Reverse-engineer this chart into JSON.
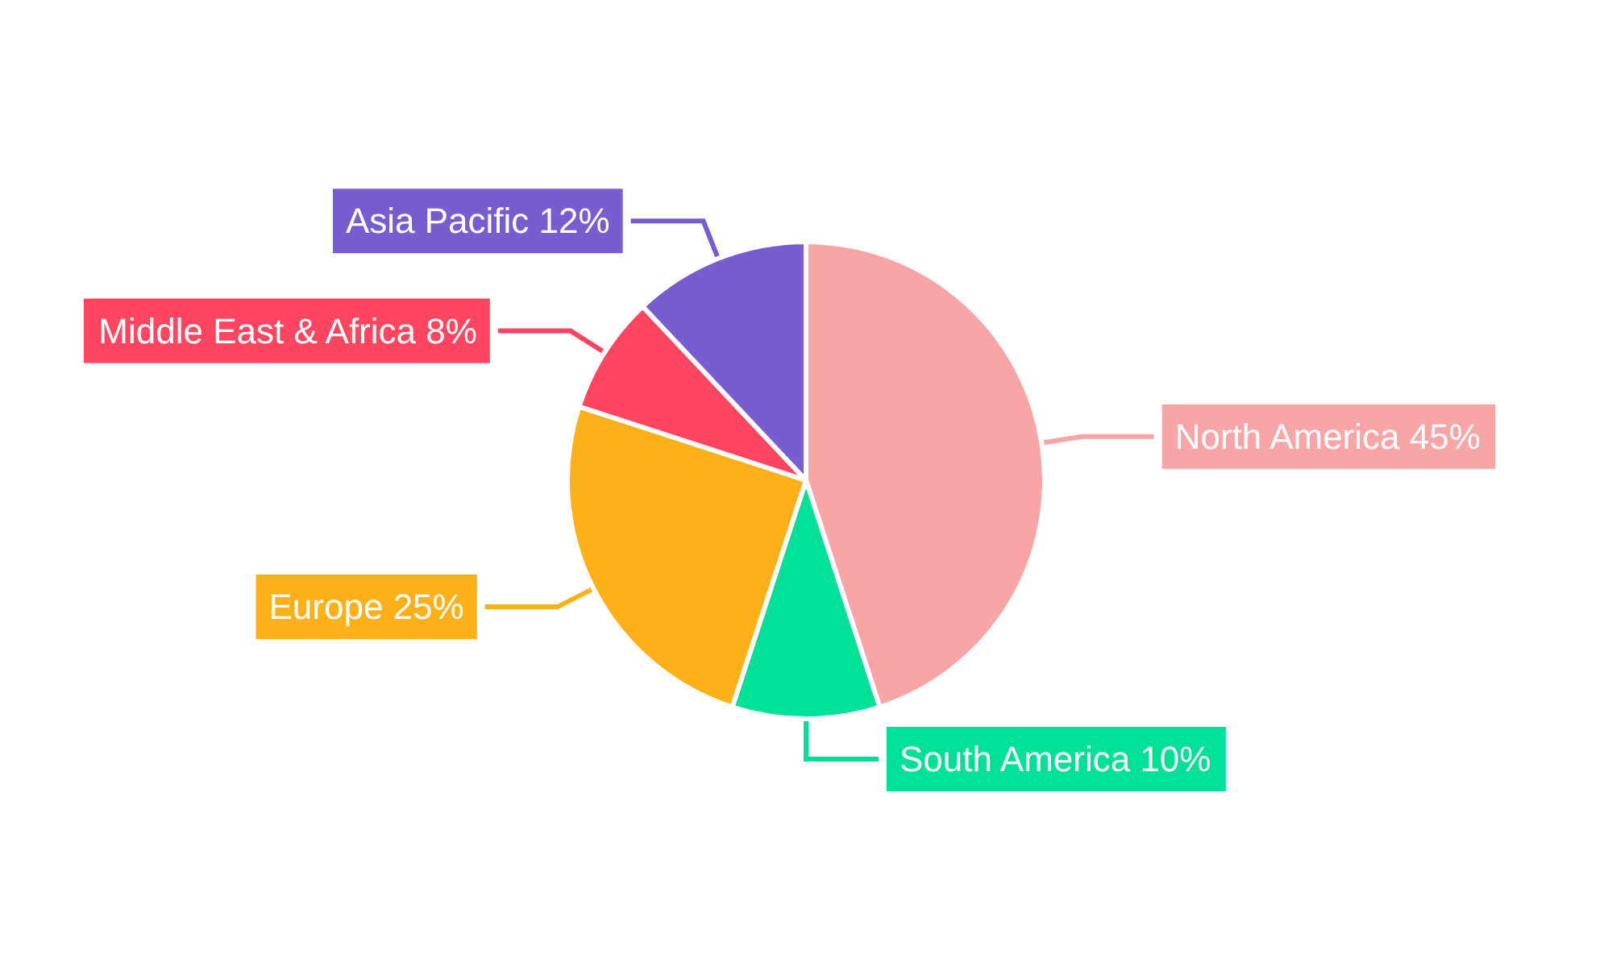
{
  "chart_data": {
    "type": "pie",
    "categories": [
      "North America",
      "South America",
      "Europe",
      "Middle East & Africa",
      "Asia Pacific"
    ],
    "values": [
      45,
      10,
      25,
      8,
      12
    ],
    "value_labels": [
      "45%",
      "10%",
      "25%",
      "8%",
      "12%"
    ],
    "colors": [
      "#f9a5a5",
      "#00e096",
      "#feb019",
      "#ff4560",
      "#775dd0"
    ],
    "legend": false
  }
}
